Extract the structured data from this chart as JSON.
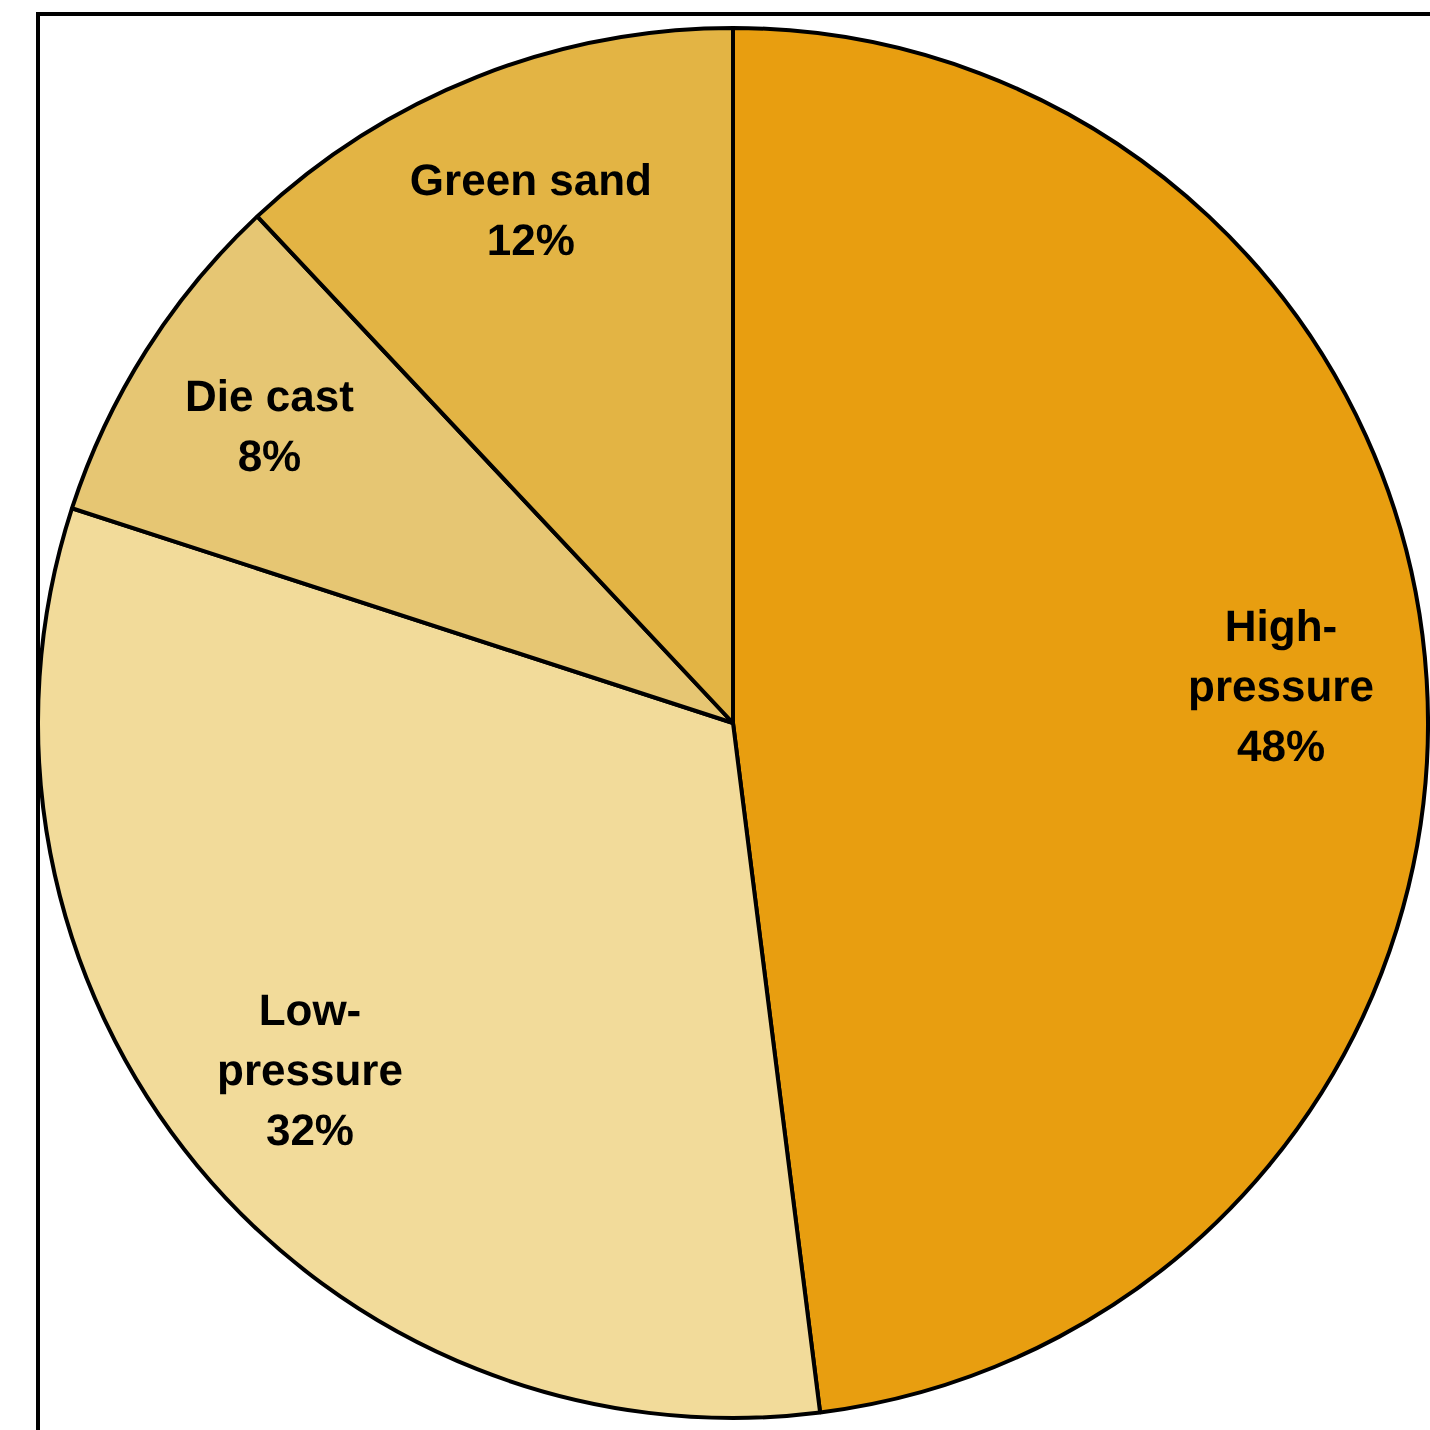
{
  "chart_data": {
    "type": "pie",
    "categories": [
      "High-pressure",
      "Low-pressure",
      "Die cast",
      "Green sand"
    ],
    "values": [
      48,
      32,
      8,
      12
    ],
    "colors": [
      "#e89e10",
      "#f2db9a",
      "#e6c673",
      "#e3b444"
    ],
    "value_labels": [
      "48%",
      "32%",
      "8%",
      "12%"
    ]
  }
}
